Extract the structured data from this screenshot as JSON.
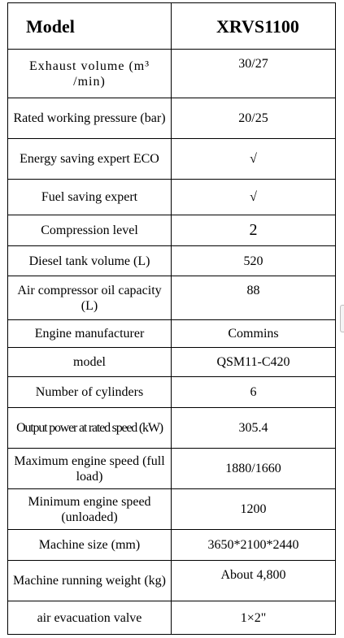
{
  "header": {
    "label": "Model",
    "value": "XRVS1100"
  },
  "rows": [
    {
      "label": "Exhaust volume (m³ /min)",
      "value": "30/27"
    },
    {
      "label": "Rated working pressure (bar)",
      "value": "20/25"
    },
    {
      "label": "Energy saving expert ECO",
      "value": "√"
    },
    {
      "label": "Fuel saving expert",
      "value": "√"
    },
    {
      "label": "Compression level",
      "value": "2"
    },
    {
      "label": "Diesel tank volume (L)",
      "value": "520"
    },
    {
      "label": "Air compressor oil capacity (L)",
      "value": "88"
    },
    {
      "label": "Engine manufacturer",
      "value": "Commins"
    },
    {
      "label": "model",
      "value": "QSM11-C420"
    },
    {
      "label": "Number of cylinders",
      "value": "6"
    },
    {
      "label": "Output power at rated speed (kW)",
      "value": "305.4"
    },
    {
      "label": "Maximum engine speed (full load)",
      "value": "1880/1660"
    },
    {
      "label": "Minimum engine speed (unloaded)",
      "value": "1200"
    },
    {
      "label": "Machine size (mm)",
      "value": "3650*2100*2440"
    },
    {
      "label": "Machine running weight (kg)",
      "value": "About 4,800"
    },
    {
      "label": "air evacuation valve",
      "value": "1×2\""
    }
  ]
}
